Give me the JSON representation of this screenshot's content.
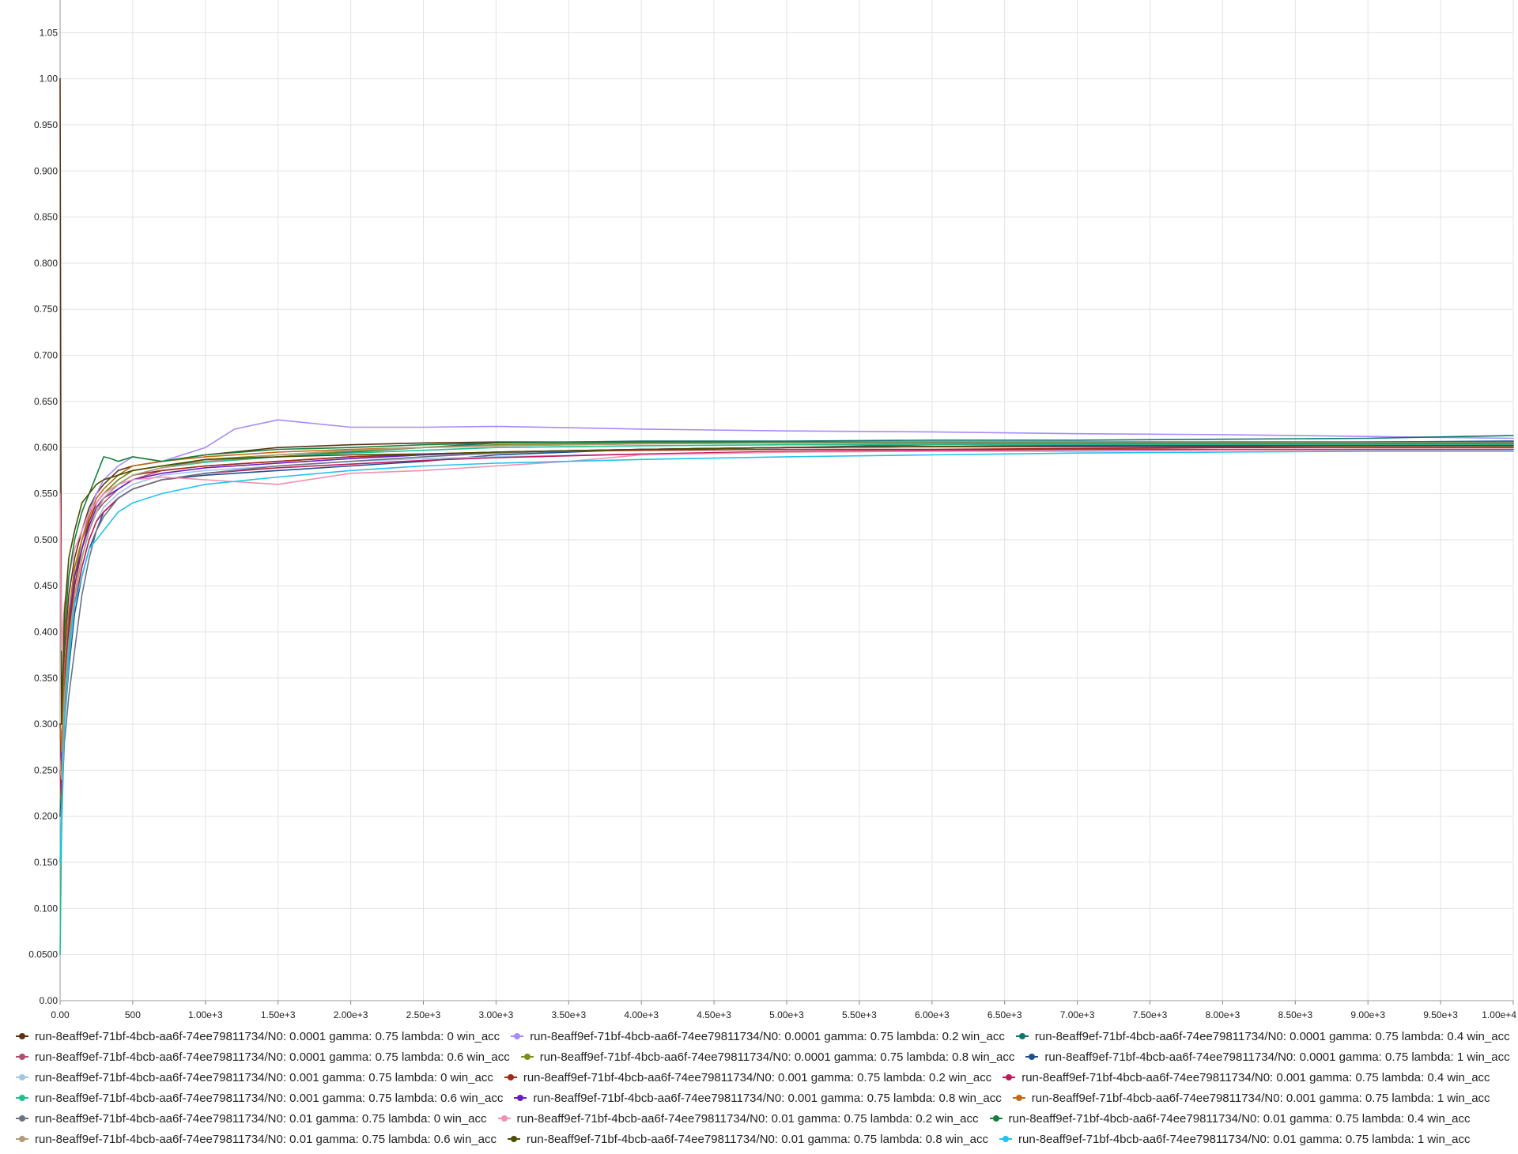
{
  "chart_data": {
    "type": "line",
    "title": "",
    "xlabel": "",
    "ylabel": "",
    "xlim": [
      0,
      10000
    ],
    "ylim": [
      0,
      1.07
    ],
    "grid": true,
    "legend_position": "bottom",
    "x_ticks": [
      0,
      500,
      1000,
      1500,
      2000,
      2500,
      3000,
      3500,
      4000,
      4500,
      5000,
      5500,
      6000,
      6500,
      7000,
      7500,
      8000,
      8500,
      9000,
      9500,
      10000
    ],
    "x_tick_labels": [
      "0.00",
      "500",
      "1.00e+3",
      "1.50e+3",
      "2.00e+3",
      "2.50e+3",
      "3.00e+3",
      "3.50e+3",
      "4.00e+3",
      "4.50e+3",
      "5.00e+3",
      "5.50e+3",
      "6.00e+3",
      "6.50e+3",
      "7.00e+3",
      "7.50e+3",
      "8.00e+3",
      "8.50e+3",
      "9.00e+3",
      "9.50e+3",
      "1.00e+4"
    ],
    "y_ticks": [
      0,
      0.05,
      0.1,
      0.15,
      0.2,
      0.25,
      0.3,
      0.35,
      0.4,
      0.45,
      0.5,
      0.55,
      0.6,
      0.65,
      0.7,
      0.75,
      0.8,
      0.85,
      0.9,
      0.95,
      1.0,
      1.05
    ],
    "y_tick_labels": [
      "0.00",
      "0.0500",
      "0.100",
      "0.150",
      "0.200",
      "0.250",
      "0.300",
      "0.350",
      "0.400",
      "0.450",
      "0.500",
      "0.550",
      "0.600",
      "0.650",
      "0.700",
      "0.750",
      "0.800",
      "0.850",
      "0.900",
      "0.950",
      "1.00",
      "1.05"
    ],
    "series": [
      {
        "name": "run-8eaff9ef-71bf-4bcb-aa6f-74ee79811734/N0: 0.0001 gamma: 0.75 lambda: 0 win_acc",
        "color": "#5c3317",
        "x": [
          0,
          10,
          30,
          60,
          100,
          150,
          200,
          250,
          300,
          400,
          500,
          700,
          1000,
          1500,
          2000,
          2500,
          3000,
          4000,
          5000,
          6000,
          7000,
          8000,
          9000,
          10000
        ],
        "y": [
          1.0,
          0.3,
          0.38,
          0.44,
          0.48,
          0.51,
          0.535,
          0.55,
          0.56,
          0.575,
          0.58,
          0.585,
          0.592,
          0.6,
          0.603,
          0.605,
          0.606,
          0.606,
          0.605,
          0.605,
          0.604,
          0.604,
          0.604,
          0.604
        ]
      },
      {
        "name": "run-8eaff9ef-71bf-4bcb-aa6f-74ee79811734/N0: 0.0001 gamma: 0.75 lambda: 0.2 win_acc",
        "color": "#a78bfa",
        "x": [
          0,
          10,
          30,
          60,
          100,
          150,
          200,
          250,
          300,
          400,
          500,
          700,
          1000,
          1200,
          1500,
          2000,
          2500,
          3000,
          4000,
          5000,
          6000,
          7000,
          8000,
          9000,
          10000
        ],
        "y": [
          0.3,
          0.28,
          0.36,
          0.42,
          0.47,
          0.5,
          0.53,
          0.55,
          0.565,
          0.58,
          0.59,
          0.585,
          0.6,
          0.62,
          0.63,
          0.622,
          0.622,
          0.623,
          0.62,
          0.618,
          0.617,
          0.615,
          0.614,
          0.612,
          0.61
        ]
      },
      {
        "name": "run-8eaff9ef-71bf-4bcb-aa6f-74ee79811734/N0: 0.0001 gamma: 0.75 lambda: 0.4 win_acc",
        "color": "#0f766e",
        "x": [
          0,
          10,
          30,
          60,
          100,
          150,
          200,
          250,
          300,
          400,
          500,
          700,
          1000,
          1500,
          2000,
          2500,
          3000,
          4000,
          5000,
          6000,
          7000,
          8000,
          9000,
          10000
        ],
        "y": [
          0.2,
          0.25,
          0.33,
          0.4,
          0.45,
          0.49,
          0.52,
          0.54,
          0.55,
          0.565,
          0.575,
          0.58,
          0.585,
          0.59,
          0.595,
          0.6,
          0.605,
          0.607,
          0.607,
          0.608,
          0.608,
          0.609,
          0.61,
          0.613
        ]
      },
      {
        "name": "run-8eaff9ef-71bf-4bcb-aa6f-74ee79811734/N0: 0.0001 gamma: 0.75 lambda: 0.6 win_acc",
        "color": "#b05070",
        "x": [
          0,
          10,
          30,
          60,
          100,
          150,
          200,
          250,
          300,
          400,
          500,
          700,
          1000,
          1500,
          2000,
          2500,
          3000,
          4000,
          5000,
          6000,
          7000,
          8000,
          9000,
          10000
        ],
        "y": [
          0.25,
          0.22,
          0.32,
          0.39,
          0.44,
          0.48,
          0.51,
          0.53,
          0.54,
          0.555,
          0.565,
          0.575,
          0.58,
          0.585,
          0.59,
          0.592,
          0.595,
          0.598,
          0.6,
          0.601,
          0.601,
          0.602,
          0.602,
          0.602
        ]
      },
      {
        "name": "run-8eaff9ef-71bf-4bcb-aa6f-74ee79811734/N0: 0.0001 gamma: 0.75 lambda: 0.8 win_acc",
        "color": "#7a8f1a",
        "x": [
          0,
          10,
          30,
          60,
          100,
          150,
          200,
          250,
          300,
          400,
          500,
          700,
          1000,
          1500,
          2000,
          2500,
          3000,
          4000,
          5000,
          6000,
          7000,
          8000,
          9000,
          10000
        ],
        "y": [
          0.2,
          0.26,
          0.35,
          0.41,
          0.46,
          0.5,
          0.52,
          0.54,
          0.55,
          0.565,
          0.575,
          0.58,
          0.587,
          0.592,
          0.596,
          0.6,
          0.603,
          0.605,
          0.605,
          0.604,
          0.603,
          0.603,
          0.602,
          0.602
        ]
      },
      {
        "name": "run-8eaff9ef-71bf-4bcb-aa6f-74ee79811734/N0: 0.0001 gamma: 0.75 lambda: 1 win_acc",
        "color": "#1e4f8c",
        "x": [
          0,
          10,
          30,
          60,
          100,
          150,
          200,
          250,
          300,
          400,
          500,
          700,
          1000,
          1500,
          2000,
          2500,
          3000,
          4000,
          5000,
          6000,
          7000,
          8000,
          9000,
          10000
        ],
        "y": [
          0.2,
          0.22,
          0.3,
          0.36,
          0.42,
          0.46,
          0.49,
          0.51,
          0.53,
          0.545,
          0.555,
          0.565,
          0.57,
          0.575,
          0.58,
          0.585,
          0.592,
          0.598,
          0.6,
          0.603,
          0.604,
          0.605,
          0.606,
          0.607
        ]
      },
      {
        "name": "run-8eaff9ef-71bf-4bcb-aa6f-74ee79811734/N0: 0.001 gamma: 0.75 lambda: 0 win_acc",
        "color": "#9fc5e8",
        "x": [
          0,
          10,
          30,
          60,
          100,
          150,
          200,
          250,
          300,
          400,
          500,
          700,
          1000,
          1500,
          2000,
          2500,
          3000,
          4000,
          5000,
          6000,
          7000,
          8000,
          9000,
          10000
        ],
        "y": [
          0.15,
          0.2,
          0.3,
          0.37,
          0.43,
          0.47,
          0.5,
          0.52,
          0.535,
          0.55,
          0.56,
          0.57,
          0.575,
          0.58,
          0.585,
          0.588,
          0.59,
          0.593,
          0.595,
          0.596,
          0.597,
          0.597,
          0.598,
          0.598
        ]
      },
      {
        "name": "run-8eaff9ef-71bf-4bcb-aa6f-74ee79811734/N0: 0.001 gamma: 0.75 lambda: 0.2 win_acc",
        "color": "#a32a12",
        "x": [
          0,
          10,
          30,
          60,
          100,
          150,
          200,
          250,
          300,
          400,
          500,
          700,
          1000,
          1500,
          2000,
          2500,
          3000,
          4000,
          5000,
          6000,
          7000,
          8000,
          9000,
          10000
        ],
        "y": [
          0.3,
          0.25,
          0.34,
          0.4,
          0.45,
          0.49,
          0.52,
          0.54,
          0.55,
          0.56,
          0.57,
          0.575,
          0.58,
          0.585,
          0.59,
          0.593,
          0.595,
          0.597,
          0.598,
          0.598,
          0.599,
          0.6,
          0.6,
          0.6
        ]
      },
      {
        "name": "run-8eaff9ef-71bf-4bcb-aa6f-74ee79811734/N0: 0.001 gamma: 0.75 lambda: 0.4 win_acc",
        "color": "#c2185b",
        "x": [
          0,
          10,
          30,
          60,
          100,
          150,
          200,
          250,
          300,
          400,
          500,
          700,
          1000,
          1500,
          2000,
          2500,
          3000,
          4000,
          5000,
          6000,
          7000,
          8000,
          9000,
          10000
        ],
        "y": [
          0.25,
          0.22,
          0.31,
          0.38,
          0.43,
          0.47,
          0.5,
          0.52,
          0.53,
          0.545,
          0.555,
          0.565,
          0.572,
          0.578,
          0.582,
          0.586,
          0.589,
          0.593,
          0.596,
          0.597,
          0.598,
          0.598,
          0.598,
          0.598
        ]
      },
      {
        "name": "run-8eaff9ef-71bf-4bcb-aa6f-74ee79811734/N0: 0.001 gamma: 0.75 lambda: 0.6 win_acc",
        "color": "#1fbf8f",
        "x": [
          0,
          10,
          30,
          60,
          100,
          150,
          200,
          250,
          300,
          400,
          500,
          700,
          1000,
          1500,
          2000,
          2500,
          3000,
          4000,
          5000,
          6000,
          7000,
          8000,
          9000,
          10000
        ],
        "y": [
          0.05,
          0.18,
          0.3,
          0.38,
          0.44,
          0.48,
          0.51,
          0.53,
          0.545,
          0.56,
          0.57,
          0.578,
          0.584,
          0.59,
          0.594,
          0.597,
          0.6,
          0.602,
          0.603,
          0.603,
          0.603,
          0.603,
          0.603,
          0.603
        ]
      },
      {
        "name": "run-8eaff9ef-71bf-4bcb-aa6f-74ee79811734/N0: 0.001 gamma: 0.75 lambda: 0.8 win_acc",
        "color": "#6a1bc4",
        "x": [
          0,
          10,
          30,
          60,
          100,
          150,
          200,
          250,
          300,
          400,
          500,
          700,
          1000,
          1500,
          2000,
          2500,
          3000,
          4000,
          5000,
          6000,
          7000,
          8000,
          9000,
          10000
        ],
        "y": [
          0.3,
          0.26,
          0.35,
          0.41,
          0.46,
          0.49,
          0.515,
          0.535,
          0.545,
          0.555,
          0.565,
          0.572,
          0.578,
          0.583,
          0.588,
          0.592,
          0.595,
          0.598,
          0.6,
          0.601,
          0.601,
          0.601,
          0.602,
          0.602
        ]
      },
      {
        "name": "run-8eaff9ef-71bf-4bcb-aa6f-74ee79811734/N0: 0.001 gamma: 0.75 lambda: 1 win_acc",
        "color": "#c26a10",
        "x": [
          0,
          10,
          30,
          60,
          100,
          150,
          200,
          250,
          300,
          400,
          500,
          700,
          1000,
          1500,
          2000,
          2500,
          3000,
          4000,
          5000,
          6000,
          7000,
          8000,
          9000,
          10000
        ],
        "y": [
          0.3,
          0.27,
          0.36,
          0.42,
          0.47,
          0.5,
          0.525,
          0.545,
          0.555,
          0.57,
          0.58,
          0.585,
          0.59,
          0.595,
          0.598,
          0.6,
          0.602,
          0.604,
          0.605,
          0.605,
          0.605,
          0.606,
          0.606,
          0.606
        ]
      },
      {
        "name": "run-8eaff9ef-71bf-4bcb-aa6f-74ee79811734/N0: 0.01 gamma: 0.75 lambda: 0 win_acc",
        "color": "#6b7280",
        "x": [
          0,
          10,
          30,
          60,
          100,
          150,
          200,
          250,
          300,
          400,
          500,
          700,
          1000,
          1500,
          2000,
          2500,
          3000,
          4000,
          5000,
          6000,
          7000,
          8000,
          9000,
          10000
        ],
        "y": [
          0.2,
          0.21,
          0.28,
          0.33,
          0.38,
          0.44,
          0.48,
          0.51,
          0.525,
          0.545,
          0.555,
          0.565,
          0.572,
          0.58,
          0.585,
          0.59,
          0.594,
          0.598,
          0.6,
          0.601,
          0.602,
          0.602,
          0.602,
          0.602
        ]
      },
      {
        "name": "run-8eaff9ef-71bf-4bcb-aa6f-74ee79811734/N0: 0.01 gamma: 0.75 lambda: 0.2 win_acc",
        "color": "#f48fb1",
        "x": [
          0,
          10,
          30,
          60,
          100,
          150,
          200,
          250,
          300,
          400,
          500,
          700,
          1000,
          1500,
          2000,
          2500,
          3000,
          3500,
          4000,
          5000,
          6000,
          7000,
          8000,
          9000,
          10000
        ],
        "y": [
          0.55,
          0.38,
          0.43,
          0.46,
          0.49,
          0.51,
          0.53,
          0.54,
          0.55,
          0.56,
          0.565,
          0.568,
          0.565,
          0.56,
          0.572,
          0.575,
          0.58,
          0.585,
          0.592,
          0.595,
          0.596,
          0.596,
          0.597,
          0.597,
          0.597
        ]
      },
      {
        "name": "run-8eaff9ef-71bf-4bcb-aa6f-74ee79811734/N0: 0.01 gamma: 0.75 lambda: 0.4 win_acc",
        "color": "#15803d",
        "x": [
          0,
          10,
          30,
          60,
          100,
          150,
          200,
          250,
          300,
          350,
          400,
          500,
          700,
          1000,
          1500,
          2000,
          2500,
          3000,
          4000,
          5000,
          6000,
          7000,
          8000,
          9000,
          10000
        ],
        "y": [
          0.3,
          0.3,
          0.4,
          0.46,
          0.5,
          0.53,
          0.55,
          0.57,
          0.59,
          0.588,
          0.585,
          0.59,
          0.585,
          0.592,
          0.598,
          0.6,
          0.603,
          0.605,
          0.606,
          0.606,
          0.606,
          0.606,
          0.606,
          0.606,
          0.606
        ]
      },
      {
        "name": "run-8eaff9ef-71bf-4bcb-aa6f-74ee79811734/N0: 0.01 gamma: 0.75 lambda: 0.6 win_acc",
        "color": "#b59a7a",
        "x": [
          0,
          10,
          30,
          60,
          100,
          150,
          200,
          250,
          300,
          400,
          500,
          700,
          1000,
          1500,
          2000,
          2500,
          3000,
          4000,
          5000,
          6000,
          7000,
          8000,
          9000,
          10000
        ],
        "y": [
          0.25,
          0.24,
          0.33,
          0.39,
          0.44,
          0.48,
          0.51,
          0.53,
          0.545,
          0.56,
          0.57,
          0.578,
          0.585,
          0.592,
          0.597,
          0.6,
          0.602,
          0.604,
          0.605,
          0.605,
          0.605,
          0.605,
          0.605,
          0.605
        ]
      },
      {
        "name": "run-8eaff9ef-71bf-4bcb-aa6f-74ee79811734/N0: 0.01 gamma: 0.75 lambda: 0.8 win_acc",
        "color": "#4d4d00",
        "x": [
          0,
          10,
          30,
          60,
          100,
          150,
          200,
          250,
          300,
          400,
          500,
          700,
          1000,
          1500,
          2000,
          2500,
          3000,
          4000,
          5000,
          6000,
          7000,
          8000,
          9000,
          10000
        ],
        "y": [
          0.3,
          0.3,
          0.42,
          0.48,
          0.51,
          0.54,
          0.55,
          0.56,
          0.565,
          0.57,
          0.575,
          0.58,
          0.587,
          0.59,
          0.592,
          0.593,
          0.595,
          0.598,
          0.6,
          0.601,
          0.602,
          0.602,
          0.602,
          0.602
        ]
      },
      {
        "name": "run-8eaff9ef-71bf-4bcb-aa6f-74ee79811734/N0: 0.01 gamma: 0.75 lambda: 1 win_acc",
        "color": "#22c3ee",
        "x": [
          0,
          10,
          30,
          60,
          100,
          150,
          200,
          250,
          300,
          400,
          500,
          700,
          1000,
          1500,
          2000,
          2500,
          3000,
          4000,
          5000,
          6000,
          7000,
          8000,
          9000,
          10000
        ],
        "y": [
          0.15,
          0.2,
          0.3,
          0.37,
          0.43,
          0.46,
          0.49,
          0.5,
          0.51,
          0.53,
          0.54,
          0.55,
          0.56,
          0.568,
          0.575,
          0.58,
          0.583,
          0.587,
          0.59,
          0.592,
          0.594,
          0.595,
          0.596,
          0.596
        ]
      }
    ]
  }
}
